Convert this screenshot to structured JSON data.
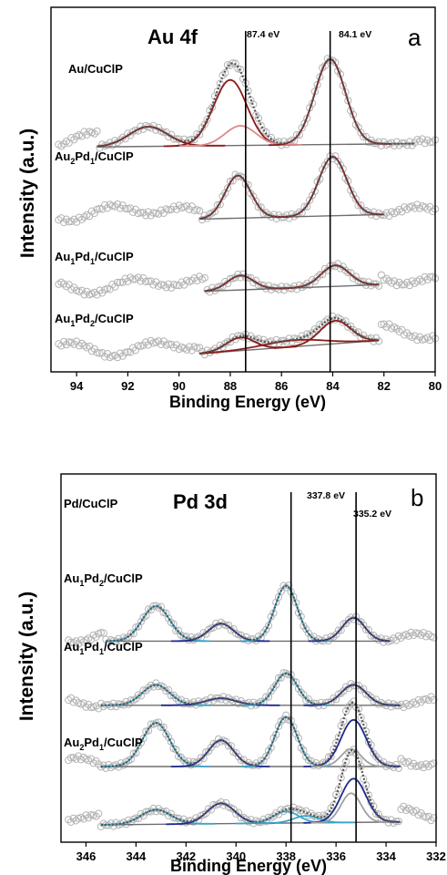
{
  "figure": {
    "colors": {
      "data_points": "#b4b4b4",
      "background_line": "#6e6e6e",
      "au_fit": "#8b1a1a",
      "au_fit_light": "#d98a8a",
      "pd_fit_cyan": "#3aa6c9",
      "pd_fit_navy": "#1f2a8c",
      "pd_fit_gray": "#a0a0a0"
    }
  },
  "chart_data": [
    {
      "type": "line",
      "panel_label": "a",
      "title": "Au 4f",
      "xlabel": "Binding Energy (eV)",
      "ylabel": "Intensity (a.u.)",
      "xlim": [
        95,
        80
      ],
      "x_reversed": true,
      "x_ticks": [
        "94",
        "92",
        "90",
        "88",
        "86",
        "84",
        "82",
        "80"
      ],
      "x_tick_values": [
        94,
        92,
        90,
        88,
        86,
        84,
        82,
        80
      ],
      "reference_lines": [
        {
          "x": 87.4,
          "label": "87.4 eV"
        },
        {
          "x": 84.1,
          "label": "84.1 eV"
        }
      ],
      "series": [
        {
          "name_main": "Au",
          "name_sub1": "",
          "name_mid": "",
          "name_sub2": "",
          "name_tail": "/CuClP",
          "offset": 3.0,
          "scale": 1.0,
          "fit_range": [
            93.2,
            80.8
          ],
          "bg_start": 0.15,
          "bg_end": 0.2,
          "peaks": [
            {
              "center": 91.2,
              "height": 0.3,
              "width": 0.75,
              "color": "au_fit"
            },
            {
              "center": 88.0,
              "height": 1.0,
              "width": 0.65,
              "color": "au_fit"
            },
            {
              "center": 87.6,
              "height": 0.3,
              "width": 0.6,
              "color": "au_fit_light"
            },
            {
              "center": 84.1,
              "height": 1.3,
              "width": 0.6,
              "color": "au_fit"
            }
          ]
        },
        {
          "name_main": "Au",
          "name_sub1": "2",
          "name_mid": "Pd",
          "name_sub2": "1",
          "name_tail": "/CuClP",
          "offset": 2.0,
          "scale": 1.0,
          "fit_range": [
            89.2,
            82.0
          ],
          "bg_start": 0.05,
          "bg_end": 0.12,
          "peaks": [
            {
              "center": 87.7,
              "height": 0.65,
              "width": 0.5,
              "color": "au_fit"
            },
            {
              "center": 84.0,
              "height": 0.9,
              "width": 0.55,
              "color": "au_fit"
            }
          ]
        },
        {
          "name_main": "Au",
          "name_sub1": "1",
          "name_mid": "Pd",
          "name_sub2": "1",
          "name_tail": "/CuClP",
          "offset": 0.95,
          "scale": 1.0,
          "fit_range": [
            89.0,
            82.2
          ],
          "bg_start": 0.0,
          "bg_end": 0.1,
          "peaks": [
            {
              "center": 87.6,
              "height": 0.22,
              "width": 0.5,
              "color": "au_fit"
            },
            {
              "center": 83.9,
              "height": 0.32,
              "width": 0.55,
              "color": "au_fit"
            }
          ]
        },
        {
          "name_main": "Au",
          "name_sub1": "1",
          "name_mid": "Pd",
          "name_sub2": "2",
          "name_tail": "/CuClP",
          "offset": 0.0,
          "scale": 1.0,
          "fit_range": [
            89.2,
            82.2
          ],
          "bg_start": 0.0,
          "bg_end": 0.2,
          "peaks": [
            {
              "center": 87.6,
              "height": 0.2,
              "width": 0.55,
              "color": "au_fit"
            },
            {
              "center": 85.5,
              "height": 0.1,
              "width": 1.2,
              "color": "au_fit"
            },
            {
              "center": 83.9,
              "height": 0.35,
              "width": 0.6,
              "color": "au_fit"
            }
          ]
        }
      ]
    },
    {
      "type": "line",
      "panel_label": "b",
      "title": "Pd 3d",
      "xlabel": "Binding Energy (eV)",
      "ylabel": "Intensity (a.u.)",
      "xlim": [
        347,
        332
      ],
      "x_reversed": true,
      "x_ticks": [
        "346",
        "344",
        "342",
        "340",
        "338",
        "336",
        "334",
        "332"
      ],
      "x_tick_values": [
        346,
        344,
        342,
        340,
        338,
        336,
        334,
        332
      ],
      "reference_lines": [
        {
          "x": 337.8,
          "label": "337.8 eV"
        },
        {
          "x": 335.2,
          "label": "335.2 eV"
        }
      ],
      "series": [
        {
          "name_main": "Pd",
          "name_sub1": "",
          "name_mid": "",
          "name_sub2": "",
          "name_tail": "/CuClP",
          "offset": 3.1,
          "scale": 1.0,
          "fit_range": [
            345.2,
            333.8
          ],
          "bg_start": 0.05,
          "bg_end": 0.05,
          "peaks": [
            {
              "center": 343.2,
              "height": 0.6,
              "width": 0.55,
              "color": "pd_fit_cyan"
            },
            {
              "center": 340.6,
              "height": 0.3,
              "width": 0.5,
              "color": "pd_fit_navy"
            },
            {
              "center": 338.0,
              "height": 0.95,
              "width": 0.45,
              "color": "pd_fit_cyan"
            },
            {
              "center": 335.3,
              "height": 0.4,
              "width": 0.45,
              "color": "pd_fit_navy"
            }
          ]
        },
        {
          "name_main": "Au",
          "name_sub1": "1",
          "name_mid": "Pd",
          "name_sub2": "2",
          "name_tail": "/CuClP",
          "offset": 2.0,
          "scale": 1.0,
          "fit_range": [
            345.4,
            333.4
          ],
          "bg_start": 0.05,
          "bg_end": 0.05,
          "peaks": [
            {
              "center": 343.2,
              "height": 0.35,
              "width": 0.55,
              "color": "pd_fit_cyan"
            },
            {
              "center": 340.6,
              "height": 0.12,
              "width": 0.6,
              "color": "pd_fit_navy"
            },
            {
              "center": 338.0,
              "height": 0.55,
              "width": 0.45,
              "color": "pd_fit_cyan"
            },
            {
              "center": 335.3,
              "height": 0.35,
              "width": 0.5,
              "color": "pd_fit_navy"
            }
          ]
        },
        {
          "name_main": "Au",
          "name_sub1": "1",
          "name_mid": "Pd",
          "name_sub2": "1",
          "name_tail": "/CuClP",
          "offset": 0.95,
          "scale": 1.0,
          "fit_range": [
            345.4,
            333.4
          ],
          "bg_start": 0.05,
          "bg_end": 0.05,
          "peaks": [
            {
              "center": 343.2,
              "height": 0.75,
              "width": 0.55,
              "color": "pd_fit_cyan"
            },
            {
              "center": 340.6,
              "height": 0.45,
              "width": 0.5,
              "color": "pd_fit_navy"
            },
            {
              "center": 338.0,
              "height": 0.85,
              "width": 0.45,
              "color": "pd_fit_cyan"
            },
            {
              "center": 335.3,
              "height": 0.8,
              "width": 0.5,
              "color": "pd_fit_navy"
            },
            {
              "center": 335.4,
              "height": 0.3,
              "width": 0.4,
              "color": "pd_fit_gray"
            }
          ]
        },
        {
          "name_main": "Au",
          "name_sub1": "2",
          "name_mid": "Pd",
          "name_sub2": "1",
          "name_tail": "/CuClP",
          "offset": 0.0,
          "scale": 1.0,
          "fit_range": [
            345.4,
            333.4
          ],
          "bg_start": 0.0,
          "bg_end": 0.05,
          "peaks": [
            {
              "center": 343.2,
              "height": 0.25,
              "width": 0.6,
              "color": "pd_fit_cyan"
            },
            {
              "center": 340.6,
              "height": 0.35,
              "width": 0.55,
              "color": "pd_fit_navy"
            },
            {
              "center": 338.0,
              "height": 0.2,
              "width": 0.5,
              "color": "pd_fit_cyan"
            },
            {
              "center": 337.2,
              "height": 0.12,
              "width": 0.5,
              "color": "pd_fit_cyan"
            },
            {
              "center": 335.3,
              "height": 0.75,
              "width": 0.5,
              "color": "pd_fit_navy"
            },
            {
              "center": 335.4,
              "height": 0.5,
              "width": 0.4,
              "color": "pd_fit_gray"
            }
          ]
        }
      ]
    }
  ]
}
